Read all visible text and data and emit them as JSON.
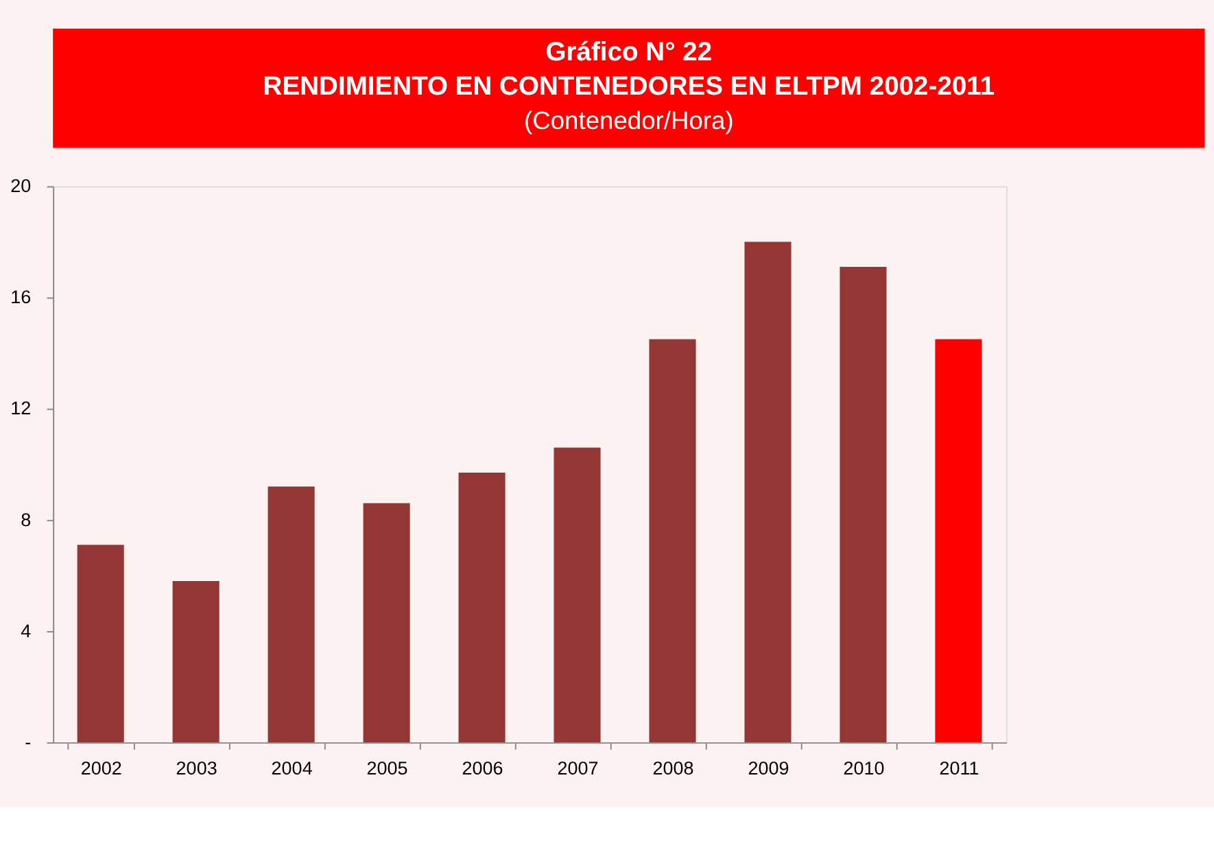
{
  "chart_data": {
    "type": "bar",
    "title": "Gráfico N° 22\nRENDIMIENTO EN CONTENEDORES EN ELTPM 2002-2011",
    "subtitle": "(Contenedor/Hora)",
    "categories": [
      "2002",
      "2003",
      "2004",
      "2005",
      "2006",
      "2007",
      "2008",
      "2009",
      "2010",
      "2011"
    ],
    "values": [
      7.1,
      5.8,
      9.2,
      8.6,
      9.7,
      10.6,
      14.5,
      18.0,
      17.1,
      14.5
    ],
    "colors": [
      "#943634",
      "#943634",
      "#943634",
      "#943634",
      "#943634",
      "#943634",
      "#943634",
      "#943634",
      "#943634",
      "#ff0000"
    ],
    "ylim": [
      0,
      20
    ],
    "yticks": [
      {
        "value": 0,
        "label": "-"
      },
      4,
      8,
      12,
      16,
      20
    ],
    "grid": false
  }
}
